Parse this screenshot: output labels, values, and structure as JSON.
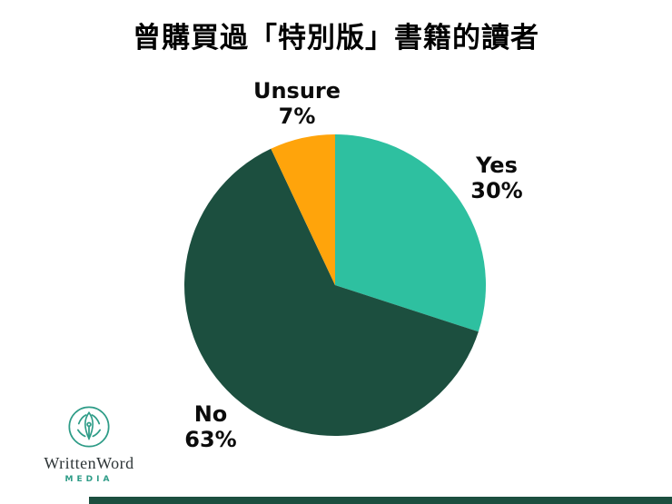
{
  "title": "曾購買過「特別版」書籍的讀者",
  "chart_data": {
    "type": "pie",
    "title": "曾購買過「特別版」書籍的讀者",
    "unit": "%",
    "start_angle_deg": 0,
    "direction": "clockwise",
    "legend": "none",
    "slices": [
      {
        "label": "Yes",
        "value": 30,
        "pct_text": "30%",
        "color": "#2ec0a0"
      },
      {
        "label": "No",
        "value": 63,
        "pct_text": "63%",
        "color": "#1c4f3f"
      },
      {
        "label": "Unsure",
        "value": 7,
        "pct_text": "7%",
        "color": "#ffa40b"
      }
    ]
  },
  "logo": {
    "brand": "WrittenWord",
    "tagline": "MEDIA",
    "icon": "pen-nib-circle-icon",
    "accent_color": "#2e9c87"
  },
  "footer": {
    "bar_color": "#1c4f3f"
  }
}
